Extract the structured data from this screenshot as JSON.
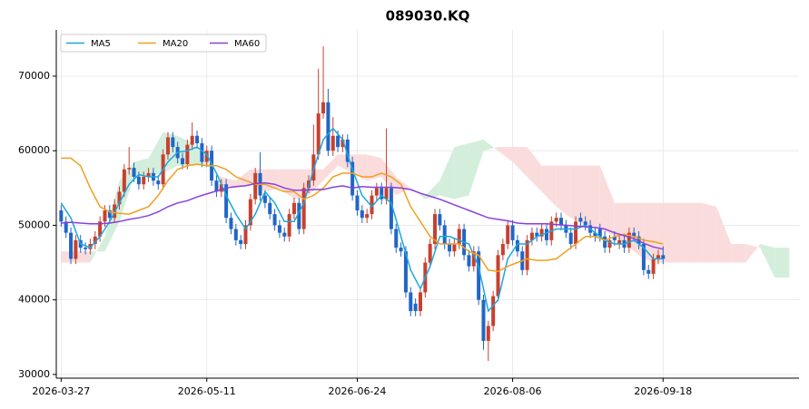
{
  "chart_data": {
    "type": "candlestick",
    "title": "089030.KQ",
    "xlim": [
      -1,
      152
    ],
    "ylim": [
      29500,
      76200
    ],
    "xticks": [
      {
        "value": 0,
        "label": "2026-03-27"
      },
      {
        "value": 30,
        "label": "2026-05-11"
      },
      {
        "value": 61,
        "label": "2026-06-24"
      },
      {
        "value": 93,
        "label": "2026-08-06"
      },
      {
        "value": 124,
        "label": "2026-09-18"
      }
    ],
    "yticks": [
      30000,
      40000,
      50000,
      60000,
      70000
    ],
    "grid": true,
    "legend": "upper left",
    "up_color": "#c8402e",
    "down_color": "#2166c6",
    "open": [
      52000,
      50500,
      49000,
      45500,
      48000,
      47000,
      46800,
      47500,
      48500,
      50500,
      52000,
      51000,
      52800,
      54500,
      57500,
      57700,
      56500,
      55500,
      56500,
      57000,
      56000,
      55500,
      59500,
      61800,
      60500,
      59000,
      58200,
      60800,
      62000,
      61000,
      58500,
      60000,
      56000,
      54500,
      55500,
      51000,
      49500,
      48000,
      47500,
      50000,
      53500,
      57000,
      54000,
      53000,
      51500,
      50000,
      49000,
      48500,
      51500,
      53000,
      49500,
      55000,
      56000,
      59500,
      65000,
      66500,
      60000,
      62000,
      60500,
      61500,
      58500,
      54000,
      52000,
      51000,
      51500,
      54000,
      55000,
      53500,
      55000,
      49500,
      47000,
      46500,
      41000,
      39500,
      38500,
      41000,
      45000,
      47500,
      51500,
      50000,
      47500,
      46500,
      47500,
      49500,
      46000,
      44500,
      46500,
      40000,
      34500,
      36500,
      40500,
      46000,
      47500,
      50000,
      48000,
      46500,
      44000,
      48000,
      49000,
      48500,
      49500,
      48000,
      50500,
      51000,
      50000,
      49000,
      47500,
      51000,
      50500,
      50000,
      49000,
      49500,
      48500,
      47000,
      48500,
      47500,
      48000,
      47000,
      49000,
      48500,
      47500,
      44000,
      43500,
      45500,
      46000
    ],
    "high": [
      52700,
      51200,
      49700,
      48700,
      48700,
      47700,
      48200,
      49200,
      51200,
      52700,
      52700,
      53500,
      55200,
      58200,
      60500,
      58400,
      57200,
      57200,
      57700,
      57700,
      56700,
      60200,
      62500,
      62500,
      61200,
      59700,
      61500,
      63800,
      62700,
      61700,
      60700,
      60700,
      56700,
      56200,
      56200,
      51700,
      50200,
      48700,
      50700,
      54200,
      57700,
      59800,
      54700,
      53700,
      52200,
      50700,
      49700,
      52200,
      53700,
      53700,
      55700,
      56700,
      63500,
      71000,
      74000,
      68300,
      64500,
      62700,
      62200,
      62200,
      59200,
      54700,
      52700,
      52200,
      54700,
      55700,
      55700,
      63000,
      55700,
      50200,
      47700,
      47200,
      41700,
      40200,
      41700,
      45700,
      48200,
      52200,
      52200,
      50700,
      48200,
      48200,
      50200,
      50200,
      46700,
      47200,
      47200,
      40700,
      37200,
      41200,
      46700,
      48200,
      50700,
      50700,
      48700,
      47200,
      48700,
      49700,
      49700,
      50200,
      50200,
      51200,
      51700,
      51700,
      50700,
      49700,
      51200,
      51700,
      51200,
      50700,
      49700,
      50200,
      49200,
      48700,
      49200,
      48700,
      48700,
      49700,
      49700,
      49200,
      48200,
      44700,
      46200,
      46700,
      47200
    ],
    "low": [
      49800,
      48300,
      44800,
      44800,
      46300,
      46100,
      46100,
      46800,
      47800,
      49800,
      50300,
      50300,
      52100,
      53800,
      56800,
      55800,
      54800,
      54800,
      55800,
      55300,
      54800,
      54800,
      58800,
      59800,
      58300,
      57500,
      57500,
      60100,
      60300,
      57800,
      57800,
      55300,
      53800,
      53800,
      50300,
      48800,
      47300,
      46800,
      46800,
      49300,
      52800,
      53300,
      52300,
      50800,
      49300,
      48300,
      47800,
      47800,
      50800,
      48800,
      48800,
      54300,
      55300,
      58800,
      64300,
      59300,
      59300,
      59800,
      59800,
      57800,
      53300,
      51300,
      50300,
      50300,
      50800,
      53300,
      52800,
      52800,
      48800,
      46300,
      45800,
      40300,
      37800,
      37800,
      37800,
      40300,
      44300,
      46800,
      49300,
      46800,
      45800,
      45800,
      46800,
      45300,
      43800,
      43800,
      39300,
      33300,
      31800,
      35800,
      39800,
      45300,
      46800,
      47300,
      45800,
      43300,
      43300,
      47300,
      47800,
      47800,
      47300,
      47300,
      49800,
      49300,
      48300,
      46800,
      46800,
      49800,
      49300,
      48300,
      47800,
      47800,
      46300,
      46300,
      47300,
      46800,
      46300,
      46300,
      47800,
      46800,
      43300,
      42800,
      42800,
      44800,
      44800
    ],
    "close": [
      50500,
      49000,
      45500,
      48000,
      47000,
      46800,
      47500,
      48500,
      50500,
      52000,
      51000,
      52800,
      54500,
      57500,
      57700,
      56500,
      55500,
      56500,
      57000,
      56000,
      55500,
      59500,
      61800,
      60500,
      59000,
      58200,
      60800,
      62000,
      61000,
      58500,
      60000,
      56000,
      54500,
      55500,
      51000,
      49500,
      48000,
      47500,
      50000,
      53500,
      57000,
      54000,
      53000,
      51500,
      50000,
      49000,
      48500,
      51500,
      53000,
      49500,
      55000,
      56000,
      59500,
      65000,
      66500,
      60000,
      62000,
      60500,
      61500,
      58500,
      54000,
      52000,
      51000,
      51500,
      54000,
      55000,
      53500,
      55000,
      49500,
      47000,
      46500,
      41000,
      38500,
      38500,
      41000,
      45000,
      47500,
      51500,
      50000,
      47500,
      46500,
      47500,
      49500,
      46000,
      44500,
      46500,
      40000,
      34500,
      36500,
      40500,
      46000,
      47500,
      50000,
      48000,
      46500,
      44000,
      48000,
      49000,
      48500,
      49500,
      48000,
      50500,
      51000,
      50000,
      49000,
      47500,
      50500,
      50500,
      50000,
      49000,
      48500,
      48500,
      47000,
      48000,
      48000,
      48000,
      47000,
      49000,
      48500,
      47500,
      44000,
      43500,
      45500,
      46000,
      45500
    ],
    "series": [
      {
        "name": "MA5",
        "color": "#1aa7de",
        "x": [
          0,
          2,
          4,
          6,
          8,
          10,
          12,
          14,
          16,
          18,
          20,
          22,
          24,
          26,
          28,
          30,
          32,
          34,
          36,
          38,
          40,
          42,
          44,
          46,
          48,
          50,
          52,
          54,
          56,
          58,
          60,
          62,
          64,
          66,
          68,
          70,
          72,
          74,
          76,
          78,
          80,
          82,
          84,
          86,
          88,
          90,
          92,
          94,
          96,
          98,
          100,
          102,
          104,
          106,
          108,
          110,
          112,
          114,
          116,
          118,
          120,
          122,
          124
        ],
        "values": [
          53000,
          51000,
          47500,
          47000,
          48500,
          50500,
          53000,
          55500,
          56800,
          56500,
          56500,
          58500,
          59800,
          60000,
          60500,
          59500,
          57000,
          54000,
          51500,
          49500,
          51500,
          54500,
          53000,
          50500,
          50500,
          53000,
          57500,
          61500,
          63000,
          61500,
          57500,
          54000,
          52500,
          54000,
          53000,
          48500,
          44000,
          41500,
          44500,
          48500,
          48500,
          48000,
          47500,
          44500,
          38500,
          40000,
          45500,
          47500,
          47500,
          48500,
          49000,
          49500,
          49500,
          49500,
          50000,
          49000,
          48000,
          47500,
          47500,
          48000,
          47000,
          45500,
          45500
        ]
      },
      {
        "name": "MA20",
        "color": "#f0a020",
        "x": [
          0,
          2,
          4,
          6,
          8,
          10,
          12,
          14,
          16,
          18,
          20,
          22,
          24,
          26,
          28,
          30,
          32,
          34,
          36,
          38,
          40,
          42,
          44,
          46,
          48,
          50,
          52,
          54,
          56,
          58,
          60,
          62,
          64,
          66,
          68,
          70,
          72,
          74,
          76,
          78,
          80,
          82,
          84,
          86,
          88,
          90,
          92,
          94,
          96,
          98,
          100,
          102,
          104,
          106,
          108,
          110,
          112,
          114,
          116,
          118,
          120,
          122,
          124
        ],
        "values": [
          59000,
          59000,
          58000,
          55000,
          52500,
          51800,
          51600,
          51500,
          52000,
          52500,
          54000,
          56000,
          57500,
          58000,
          58200,
          58000,
          58000,
          57500,
          56500,
          56000,
          55500,
          55500,
          55000,
          54500,
          54500,
          53500,
          54000,
          55000,
          56500,
          57000,
          57000,
          56500,
          56500,
          57000,
          56500,
          55500,
          52500,
          50500,
          48500,
          47500,
          47500,
          47500,
          46500,
          46000,
          44000,
          43800,
          44500,
          45000,
          45500,
          45300,
          45300,
          45500,
          46500,
          47500,
          48500,
          48500,
          48000,
          48500,
          48800,
          48500,
          48000,
          47800,
          47500
        ]
      },
      {
        "name": "MA60",
        "color": "#8a3fdd",
        "x": [
          0,
          2,
          4,
          6,
          8,
          10,
          12,
          14,
          16,
          18,
          20,
          22,
          24,
          26,
          28,
          30,
          32,
          34,
          36,
          38,
          40,
          42,
          44,
          46,
          48,
          50,
          52,
          54,
          56,
          58,
          60,
          62,
          64,
          66,
          68,
          70,
          72,
          74,
          76,
          78,
          80,
          82,
          84,
          86,
          88,
          90,
          92,
          94,
          96,
          98,
          100,
          102,
          104,
          106,
          108,
          110,
          112,
          114,
          116,
          118,
          120,
          122,
          124
        ],
        "values": [
          50300,
          50400,
          50300,
          50200,
          50200,
          50300,
          50500,
          50800,
          51000,
          51300,
          51800,
          52500,
          53000,
          53300,
          53800,
          54200,
          54600,
          55000,
          55200,
          55300,
          55600,
          55700,
          55500,
          55000,
          54700,
          54700,
          54800,
          54800,
          55100,
          55300,
          55000,
          55200,
          55100,
          55100,
          55100,
          55000,
          54800,
          54300,
          53900,
          53500,
          53000,
          52500,
          52000,
          51500,
          51000,
          50800,
          50600,
          50300,
          50200,
          50200,
          50200,
          50100,
          50000,
          49900,
          49800,
          49700,
          49500,
          49000,
          48600,
          48200,
          47600,
          47100,
          46800
        ]
      }
    ],
    "cloud": {
      "up_color": "#d4eedc",
      "down_color": "#fbdcdc",
      "x": [
        0,
        3,
        6,
        9,
        12,
        15,
        18,
        21,
        24,
        27,
        30,
        33,
        36,
        39,
        42,
        45,
        48,
        51,
        54,
        57,
        60,
        63,
        66,
        69,
        72,
        75,
        78,
        81,
        84,
        87,
        90,
        93,
        96,
        99,
        102,
        105,
        108,
        111,
        114,
        117,
        120,
        123,
        126,
        129,
        132,
        135,
        138,
        141,
        144,
        147,
        150
      ],
      "span_a": [
        45000,
        45000,
        45000,
        48500,
        56000,
        58500,
        59000,
        62500,
        62000,
        61000,
        59000,
        55500,
        55000,
        55500,
        54500,
        55000,
        53500,
        54000,
        56000,
        58000,
        57000,
        56000,
        56500,
        54000,
        55000,
        54000,
        56000,
        60500,
        61000,
        61500,
        60000,
        58500,
        56500,
        54500,
        52500,
        51000,
        50000,
        49500,
        48500,
        47000,
        45500,
        45000,
        45000,
        45000,
        45000,
        45000,
        45000,
        45000,
        47500,
        47000,
        47000
      ],
      "span_b": [
        46500,
        46500,
        46500,
        46500,
        50500,
        56500,
        56500,
        57000,
        58000,
        58000,
        58000,
        56500,
        56000,
        57500,
        57500,
        57500,
        57500,
        57500,
        57500,
        59500,
        59500,
        59500,
        59000,
        56500,
        55000,
        53500,
        54000,
        53500,
        54000,
        60000,
        60500,
        60500,
        60500,
        58000,
        58000,
        58000,
        58000,
        58000,
        53000,
        53000,
        53000,
        53000,
        53000,
        53000,
        53000,
        52500,
        47500,
        47500,
        47000,
        43000,
        43000
      ]
    }
  }
}
